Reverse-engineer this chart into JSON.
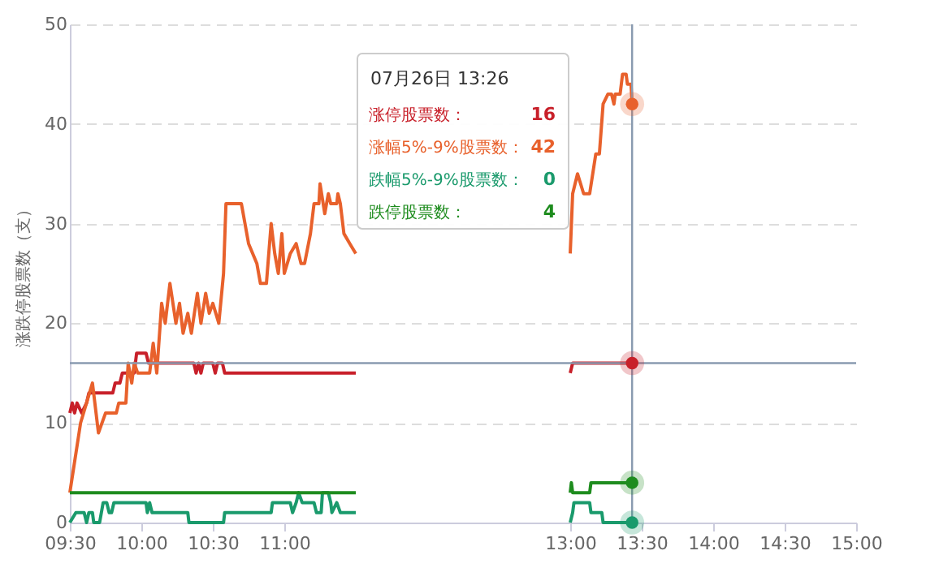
{
  "chart_data": {
    "type": "line",
    "ylabel": "涨跌停股票数（支）",
    "xlim": [
      9.5,
      15
    ],
    "ylim": [
      0,
      50
    ],
    "xticks": [
      {
        "value": 9.5,
        "label": "09:30"
      },
      {
        "value": 10,
        "label": "10:00"
      },
      {
        "value": 10.5,
        "label": "10:30"
      },
      {
        "value": 11,
        "label": "11:00"
      },
      {
        "value": 13,
        "label": "13:00"
      },
      {
        "value": 13.5,
        "label": "13:30"
      },
      {
        "value": 14,
        "label": "14:00"
      },
      {
        "value": 14.5,
        "label": "14:30"
      },
      {
        "value": 15,
        "label": "15:00"
      }
    ],
    "yticks": [
      0,
      10,
      20,
      30,
      40,
      50
    ],
    "grid": "y",
    "legend": "top",
    "line_style": "solid",
    "annotations": [
      "07月26日 13:26",
      "16",
      "42",
      "0",
      "4"
    ],
    "ref_lines": [
      {
        "axis": "x",
        "value": 13.433,
        "label": null,
        "color": "#8a9bb0"
      },
      {
        "axis": "y",
        "value": 16,
        "label": null,
        "color": "#8a9bb0"
      }
    ],
    "series": [
      {
        "name": "涨停股票数：",
        "color": "#c8202a",
        "x": [
          9.5,
          9.517,
          9.533,
          9.55,
          9.583,
          9.617,
          9.633,
          9.8,
          9.817,
          9.85,
          9.867,
          9.95,
          9.967,
          10.033,
          10.05,
          10.367,
          10.383,
          10.4,
          10.417,
          10.433,
          10.5,
          10.517,
          10.533,
          10.567,
          10.583,
          11.5,
          12.25,
          13.0,
          13.017,
          13.433
        ],
        "values": [
          11,
          12,
          11,
          12,
          11,
          12,
          13,
          13,
          14,
          14,
          15,
          15,
          17,
          17,
          16,
          16,
          15,
          16,
          15,
          16,
          16,
          15,
          16,
          16,
          15,
          15,
          null,
          15,
          16,
          16
        ]
      },
      {
        "name": "涨幅5%-9%股票数：",
        "color": "#e8612c",
        "x": [
          9.5,
          9.575,
          9.658,
          9.7,
          9.75,
          9.825,
          9.842,
          9.892,
          9.908,
          9.933,
          9.95,
          9.975,
          10.058,
          10.083,
          10.108,
          10.142,
          10.167,
          10.2,
          10.242,
          10.267,
          10.292,
          10.325,
          10.35,
          10.392,
          10.417,
          10.45,
          10.475,
          10.5,
          10.542,
          10.575,
          10.592,
          10.7,
          10.75,
          10.808,
          10.833,
          10.875,
          10.908,
          10.933,
          10.958,
          10.983,
          11.0,
          11.042,
          11.083,
          11.117,
          11.142,
          11.183,
          11.208,
          11.242,
          11.25,
          11.283,
          11.308,
          11.325,
          11.367,
          11.375,
          11.392,
          11.417,
          11.458,
          11.5,
          12.25,
          13.0,
          13.017,
          13.051,
          13.094,
          13.136,
          13.179,
          13.204,
          13.23,
          13.264,
          13.289,
          13.306,
          13.315,
          13.349,
          13.366,
          13.391,
          13.4,
          13.425,
          13.433
        ],
        "values": [
          3,
          10,
          14,
          9,
          11,
          11,
          12,
          12,
          16,
          14,
          16,
          15,
          15,
          18,
          15,
          22,
          20,
          24,
          20,
          22,
          19,
          21,
          19,
          23,
          20,
          23,
          21,
          22,
          20,
          25,
          32,
          32,
          28,
          26,
          24,
          24,
          30,
          27,
          25,
          29,
          25,
          27,
          28,
          26,
          26,
          29,
          32,
          32,
          34,
          31,
          33,
          32,
          32,
          33,
          32,
          29,
          28,
          27,
          null,
          27,
          33,
          35,
          33,
          33,
          37,
          37,
          42,
          43,
          43,
          42,
          43,
          43,
          45,
          45,
          44,
          44,
          42
        ]
      },
      {
        "name": "跌幅5%-9%股票数：",
        "color": "#1a9a6c",
        "x": [
          9.5,
          9.542,
          9.6,
          9.617,
          9.633,
          9.658,
          9.667,
          9.708,
          9.733,
          9.758,
          9.775,
          9.792,
          9.808,
          10.033,
          10.042,
          10.058,
          10.075,
          10.325,
          10.333,
          10.575,
          10.583,
          10.908,
          10.917,
          11.042,
          11.058,
          11.083,
          11.1,
          11.125,
          11.208,
          11.225,
          11.258,
          11.267,
          11.308,
          11.325,
          11.333,
          11.367,
          11.392,
          11.5,
          12.25,
          13.0,
          13.017,
          13.026,
          13.136,
          13.145,
          13.221,
          13.23,
          13.433
        ],
        "values": [
          0,
          1,
          1,
          0,
          1,
          1,
          0,
          0,
          2,
          2,
          1,
          1,
          2,
          2,
          1,
          2,
          1,
          1,
          0,
          0,
          1,
          1,
          2,
          2,
          1,
          2,
          3,
          2,
          2,
          1,
          1,
          3,
          3,
          2,
          1,
          2,
          1,
          1,
          null,
          0,
          1,
          2,
          2,
          1,
          1,
          0,
          0
        ]
      },
      {
        "name": "跌停股票数：",
        "color": "#1e8c1e",
        "x": [
          9.5,
          11.5,
          12.25,
          13.0,
          13.008,
          13.017,
          13.136,
          13.145,
          13.433
        ],
        "values": [
          3,
          3,
          null,
          3,
          4,
          3,
          3,
          4,
          4
        ]
      }
    ]
  }
}
